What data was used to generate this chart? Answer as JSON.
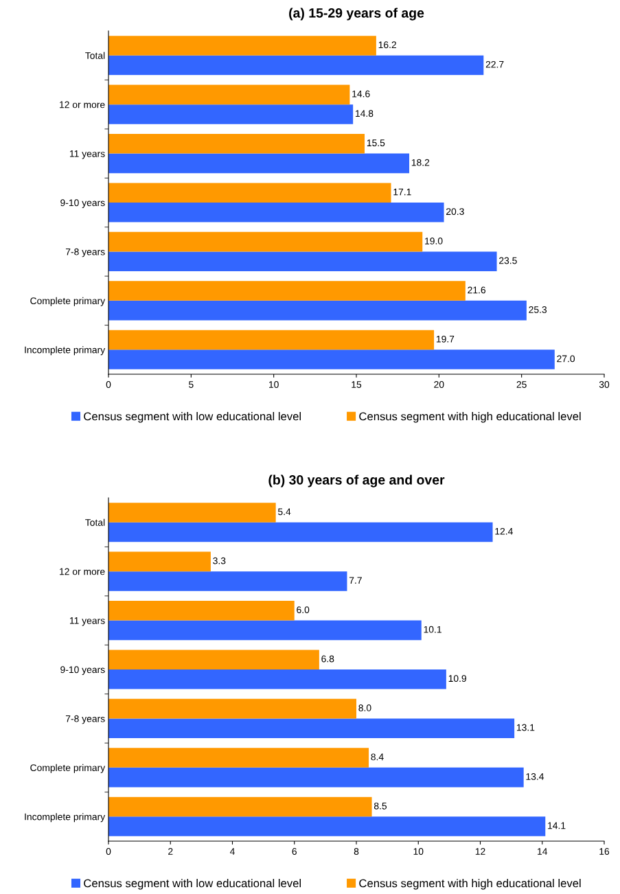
{
  "chart_data": [
    {
      "type": "bar",
      "orientation": "horizontal",
      "title": "(a) 15-29 years of age",
      "categories": [
        "Total",
        "12 or more",
        "11 years",
        "9-10 years",
        "7-8 years",
        "Complete primary",
        "Incomplete primary"
      ],
      "series": [
        {
          "name": "Census segment with low educational level",
          "color": "#3366ff",
          "values": [
            22.7,
            14.8,
            18.2,
            20.3,
            23.5,
            25.3,
            27.0
          ],
          "value_labels": [
            "22.7",
            "14.8",
            "18.2",
            "20.3",
            "23.5",
            "25.3",
            "27.0"
          ]
        },
        {
          "name": "Census segment with high educational level",
          "color": "#ff9900",
          "values": [
            16.2,
            14.6,
            15.5,
            17.1,
            19.0,
            21.6,
            19.7
          ],
          "value_labels": [
            "16.2",
            "14.6",
            "15.5",
            "17.1",
            "19.0",
            "21.6",
            "19.7"
          ]
        }
      ],
      "xlim": [
        0,
        30
      ],
      "xticks": [
        0,
        5,
        10,
        15,
        20,
        25,
        30
      ],
      "grid": false,
      "legend": "bottom"
    },
    {
      "type": "bar",
      "orientation": "horizontal",
      "title": "(b) 30 years of age and over",
      "categories": [
        "Total",
        "12 or more",
        "11 years",
        "9-10 years",
        "7-8 years",
        "Complete primary",
        "Incomplete primary"
      ],
      "series": [
        {
          "name": "Census segment with low educational level",
          "color": "#3366ff",
          "values": [
            12.4,
            7.7,
            10.1,
            10.9,
            13.1,
            13.4,
            14.1
          ],
          "value_labels": [
            "12.4",
            "7.7",
            "10.1",
            "10.9",
            "13.1",
            "13.4",
            "14.1"
          ]
        },
        {
          "name": "Census segment with high educational level",
          "color": "#ff9900",
          "values": [
            5.4,
            3.3,
            6.0,
            6.8,
            8.0,
            8.4,
            8.5
          ],
          "value_labels": [
            "5.4",
            "3.3",
            "6.0",
            "6.8",
            "8.0",
            "8.4",
            "8.5"
          ]
        }
      ],
      "xlim": [
        0,
        16
      ],
      "xticks": [
        0,
        2,
        4,
        6,
        8,
        10,
        12,
        14,
        16
      ],
      "grid": false,
      "legend": "bottom"
    }
  ]
}
